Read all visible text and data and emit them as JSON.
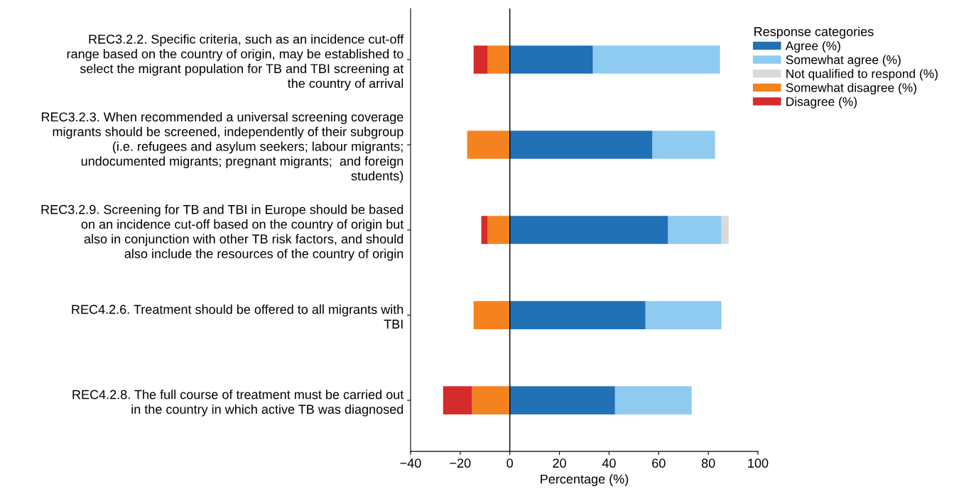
{
  "chart_data": {
    "type": "bar",
    "orientation": "horizontal",
    "stacked": true,
    "categories": [
      "REC3.2.2. Specific criteria, such as an incidence cut-off\nrange based on the country of origin, may be established to\nselect the migrant population for TB and TBI screening at\nthe country of arrival",
      "REC3.2.3. When recommended a universal screening coverage\nmigrants should be screened, independently of their subgroup\n(i.e. refugees and asylum seekers; labour migrants;\nundocumented migrants; pregnant migrants;  and foreign\nstudents)",
      "REC3.2.9. Screening for TB and TBI in Europe should be based\non an incidence cut-off based on the country of origin but\nalso in conjunction with other TB risk factors, and should\nalso include the resources of the country of origin",
      "REC4.2.6. Treatment should be offered to all migrants with\nTBI",
      "REC4.2.8. The full course of treatment must be carried out\nin the country in which active TB was diagnosed"
    ],
    "series": [
      {
        "name": "Agree (%)",
        "color": "#2071b5",
        "values": [
          33.5,
          57.5,
          63.8,
          54.7,
          42.4
        ]
      },
      {
        "name": "Somewhat agree (%)",
        "color": "#8fcbf0",
        "values": [
          51.2,
          25.2,
          21.5,
          30.6,
          30.9
        ]
      },
      {
        "name": "Not qualified to respond (%)",
        "color": "#d9d9d9",
        "values": [
          0,
          0,
          2.9,
          0,
          0
        ]
      },
      {
        "name": "Somewhat disagree (%)",
        "color": "#f4821f",
        "values": [
          -8.9,
          -17.2,
          -8.9,
          -14.6,
          -15.2
        ]
      },
      {
        "name": "Disagree (%)",
        "color": "#d62b2b",
        "values": [
          -5.7,
          0,
          -2.6,
          0,
          -11.7
        ]
      }
    ],
    "xlim": [
      -40,
      100
    ],
    "xticks": [
      {
        "value": -40,
        "label": "−40"
      },
      {
        "value": -20,
        "label": "−20"
      },
      0,
      20,
      40,
      60,
      80,
      100
    ],
    "xlabel": "Percentage (%)",
    "legend_title": "Response categories",
    "legend": "right",
    "grid": false,
    "ref_lines": [
      {
        "axis": "x",
        "value": 0,
        "color": "#000000"
      }
    ]
  }
}
